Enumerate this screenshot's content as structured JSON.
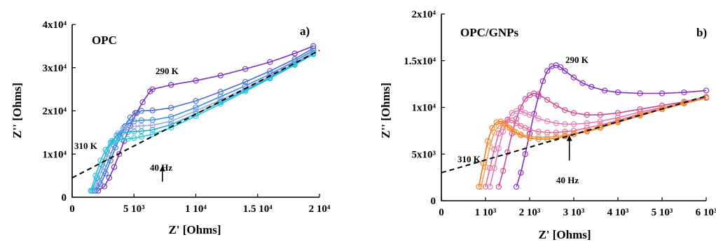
{
  "chart_data": [
    {
      "type": "line",
      "title": "OPC",
      "panel_label": "a)",
      "xlabel": "Z' [Ohms]",
      "ylabel": "Z'' [Ohms]",
      "xlim": [
        0,
        20000
      ],
      "ylim": [
        0,
        40000
      ],
      "x_tick_labels": [
        "0",
        "5 10³",
        "1 10⁴",
        "1.5 10⁴",
        "2 10⁴"
      ],
      "x_tick_values": [
        0,
        5000,
        10000,
        15000,
        20000
      ],
      "y_tick_labels": [
        "0",
        "1x10⁴",
        "2x10⁴",
        "3x10⁴",
        "4x10⁴"
      ],
      "y_tick_values": [
        0,
        10000,
        20000,
        30000,
        40000
      ],
      "annotations": {
        "high_temp": "290 K",
        "low_temp": "310 K",
        "freq": "40 Hz"
      },
      "freq_marker": {
        "x": 7300,
        "y_head": 7300,
        "y_tail": 3600
      },
      "fit_line": {
        "x": [
          0,
          20000
        ],
        "y": [
          4500,
          34000
        ]
      },
      "series": [
        {
          "color": "#7a2fb8",
          "x": [
            2100,
            2600,
            3000,
            3400,
            3800,
            4200,
            4700,
            5200,
            5700,
            6300,
            6500,
            8000,
            10000,
            12000,
            14000,
            16000,
            18000,
            19500
          ],
          "y": [
            1500,
            2500,
            4500,
            7000,
            10000,
            13000,
            16500,
            19500,
            22000,
            24500,
            25000,
            26000,
            27000,
            28200,
            29700,
            31300,
            33300,
            35000
          ]
        },
        {
          "color": "#4a6ed0",
          "x": [
            1900,
            2300,
            2700,
            3100,
            3500,
            3900,
            4300,
            4700,
            5100,
            5600,
            6500,
            8000,
            10000,
            12000,
            14000,
            16000,
            18000,
            19500
          ],
          "y": [
            1500,
            3000,
            5500,
            8500,
            11500,
            14000,
            16500,
            18500,
            19500,
            20000,
            20100,
            20700,
            22300,
            24400,
            26700,
            29200,
            32000,
            34500
          ]
        },
        {
          "color": "#3a8ce0",
          "x": [
            1800,
            2200,
            2600,
            3000,
            3400,
            3800,
            4200,
            4600,
            5000,
            5600,
            6500,
            8000,
            10000,
            12000,
            14000,
            16000,
            18000,
            19500
          ],
          "y": [
            1500,
            3500,
            6000,
            9000,
            12000,
            14500,
            16200,
            17200,
            17600,
            17800,
            17900,
            18600,
            20800,
            23300,
            25800,
            28500,
            31500,
            34000
          ]
        },
        {
          "color": "#9aa6d8",
          "x": [
            1700,
            2100,
            2500,
            2900,
            3300,
            3700,
            4100,
            4500,
            5000,
            5600,
            6500,
            8000,
            10000,
            12000,
            14000,
            16000,
            18000,
            19500
          ],
          "y": [
            1500,
            4000,
            7000,
            10000,
            12800,
            14800,
            15800,
            16200,
            16400,
            16500,
            16700,
            17600,
            20000,
            22500,
            25200,
            28000,
            31000,
            33600
          ]
        },
        {
          "color": "#2aa6d8",
          "x": [
            1600,
            2000,
            2400,
            2800,
            3200,
            3600,
            4000,
            4500,
            5000,
            5600,
            6500,
            8000,
            10000,
            12000,
            14000,
            16000,
            18000,
            19500
          ],
          "y": [
            1500,
            4500,
            7500,
            10500,
            13000,
            14300,
            14900,
            15100,
            15200,
            15300,
            15600,
            16800,
            19300,
            22000,
            24800,
            27700,
            30800,
            33300
          ]
        },
        {
          "color": "#20c8d8",
          "x": [
            1500,
            1900,
            2300,
            2700,
            3100,
            3500,
            4000,
            4500,
            5000,
            5600,
            6500,
            8000,
            10000,
            12000,
            14000,
            16000,
            18000,
            19500
          ],
          "y": [
            1500,
            5000,
            8500,
            11000,
            12600,
            13100,
            13400,
            13500,
            13700,
            14000,
            14600,
            16100,
            18800,
            21600,
            24500,
            27500,
            30600,
            33100
          ]
        }
      ]
    },
    {
      "type": "line",
      "title": "OPC/GNPs",
      "panel_label": "b)",
      "xlabel": "Z' [Ohms]",
      "ylabel": "Z'' [Ohms]",
      "xlim": [
        0,
        6000
      ],
      "ylim": [
        0,
        20000
      ],
      "x_tick_labels": [
        "0",
        "1 10³",
        "2 10³",
        "3 10³",
        "4 10³",
        "5 10³",
        "6 10³"
      ],
      "x_tick_values": [
        0,
        1000,
        2000,
        3000,
        4000,
        5000,
        6000
      ],
      "y_tick_labels": [
        "0",
        "5x10³",
        "1x10⁴",
        "1.5x10⁴",
        "2x10⁴"
      ],
      "y_tick_values": [
        0,
        5000,
        10000,
        15000,
        20000
      ],
      "annotations": {
        "high_temp": "290 K",
        "low_temp": "310 K",
        "freq": "40 Hz"
      },
      "freq_marker": {
        "x": 2900,
        "y_head": 7000,
        "y_tail": 4300
      },
      "fit_line": {
        "x": [
          0,
          6000
        ],
        "y": [
          3000,
          11200
        ]
      },
      "series": [
        {
          "color": "#8a28c0",
          "x": [
            1700,
            1800,
            1900,
            2000,
            2100,
            2200,
            2300,
            2400,
            2500,
            2600,
            2700,
            2800,
            3000,
            3200,
            3400,
            3700,
            4000,
            4500,
            5000,
            5500,
            6000
          ],
          "y": [
            1500,
            3000,
            5000,
            7200,
            9300,
            11200,
            12800,
            13900,
            14400,
            14500,
            14300,
            13900,
            13200,
            12600,
            12200,
            11800,
            11600,
            11500,
            11500,
            11600,
            11800
          ]
        },
        {
          "color": "#cc4a90",
          "x": [
            1300,
            1400,
            1500,
            1600,
            1700,
            1800,
            1900,
            2000,
            2100,
            2200,
            2400,
            2600,
            2800,
            3000,
            3300,
            3600,
            4000,
            4500,
            5000,
            5500,
            6000
          ],
          "y": [
            1500,
            3200,
            5200,
            7200,
            8800,
            10000,
            10900,
            11300,
            11500,
            11400,
            10800,
            10200,
            9700,
            9400,
            9200,
            9200,
            9400,
            9800,
            10200,
            10600,
            11100
          ]
        },
        {
          "color": "#e27ab4",
          "x": [
            1100,
            1200,
            1300,
            1400,
            1500,
            1600,
            1700,
            1800,
            1900,
            2000,
            2200,
            2400,
            2600,
            2800,
            3000,
            3300,
            3600,
            4000,
            4500,
            5000,
            5500,
            6000
          ],
          "y": [
            1500,
            3500,
            5600,
            7400,
            8600,
            9400,
            9600,
            9600,
            9400,
            9200,
            8800,
            8500,
            8300,
            8200,
            8200,
            8300,
            8500,
            8900,
            9500,
            10000,
            10500,
            11000
          ]
        },
        {
          "color": "#e86898",
          "x": [
            1000,
            1100,
            1200,
            1300,
            1400,
            1500,
            1600,
            1700,
            1800,
            1900,
            2000,
            2200,
            2400,
            2600,
            2800,
            3000,
            3300,
            3600,
            4000,
            4500,
            5000,
            5500,
            6000
          ],
          "y": [
            1500,
            3500,
            5500,
            7200,
            8300,
            8700,
            8600,
            8300,
            8000,
            7800,
            7600,
            7400,
            7300,
            7300,
            7400,
            7500,
            7800,
            8100,
            8600,
            9300,
            9900,
            10500,
            11000
          ]
        },
        {
          "color": "#f0a060",
          "x": [
            900,
            1000,
            1100,
            1200,
            1300,
            1400,
            1500,
            1600,
            1700,
            1800,
            2000,
            2200,
            2400,
            2600,
            2800,
            3000,
            3300,
            3600,
            4000,
            4500,
            5000,
            5500,
            6000
          ],
          "y": [
            1500,
            3600,
            5800,
            7300,
            8000,
            8100,
            7900,
            7600,
            7300,
            7100,
            6900,
            6800,
            6800,
            6900,
            7000,
            7200,
            7500,
            7900,
            8500,
            9200,
            9900,
            10500,
            11000
          ]
        },
        {
          "color": "#f08020",
          "x": [
            850,
            950,
            1050,
            1150,
            1250,
            1350,
            1450,
            1550,
            1650,
            1800,
            2000,
            2200,
            2400,
            2600,
            2800,
            3000,
            3300,
            3600,
            4000,
            4500,
            5000,
            5500,
            6000
          ],
          "y": [
            1500,
            4000,
            6400,
            7800,
            8400,
            8500,
            8200,
            7800,
            7400,
            7000,
            6700,
            6600,
            6600,
            6700,
            6900,
            7100,
            7400,
            7800,
            8400,
            9100,
            9800,
            10400,
            11000
          ]
        }
      ]
    }
  ]
}
